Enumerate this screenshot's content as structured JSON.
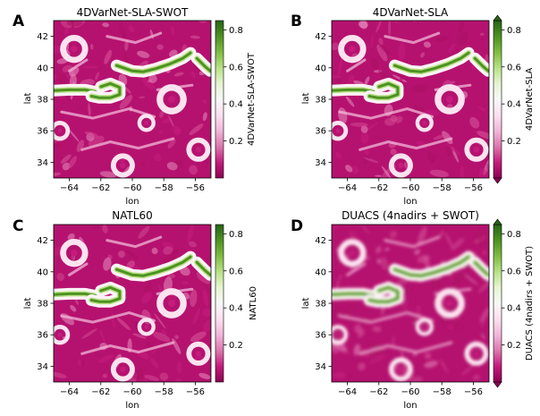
{
  "figure": {
    "panels": [
      {
        "letter": "A",
        "title": "4DVarNet-SLA-SWOT",
        "xlabel": "lon",
        "ylabel": "lat",
        "colorbar_label": "4DVarNet-SLA-SWOT",
        "extend": false,
        "blur": 0
      },
      {
        "letter": "B",
        "title": "4DVarNet-SLA",
        "xlabel": "lon",
        "ylabel": "lat",
        "colorbar_label": "4DVarNet-SLA",
        "extend": true,
        "blur": 0
      },
      {
        "letter": "C",
        "title": "NATL60",
        "xlabel": "lon",
        "ylabel": "lat",
        "colorbar_label": "NATL60",
        "extend": false,
        "blur": 0
      },
      {
        "letter": "D",
        "title": "DUACS (4nadirs + SWOT)",
        "xlabel": "lon",
        "ylabel": "lat",
        "colorbar_label": "DUACS (4nadirs + SWOT)",
        "extend": true,
        "blur": 1.6
      }
    ]
  },
  "chart_data": {
    "type": "heatmap",
    "x_ticks": [
      -64,
      -62,
      -60,
      -58,
      -56
    ],
    "y_ticks": [
      34,
      36,
      38,
      40,
      42
    ],
    "xlim": [
      -65,
      -55
    ],
    "ylim": [
      33,
      43
    ],
    "colorbar_ticks": [
      0.2,
      0.4,
      0.6,
      0.8
    ],
    "colorbar_range": [
      0,
      0.85
    ],
    "colormap": [
      "#8e0152",
      "#c51b7d",
      "#de77ae",
      "#f1b6da",
      "#fde0ef",
      "#f7f7f7",
      "#e6f5d0",
      "#b8e186",
      "#7fbc41",
      "#4d9221",
      "#276419"
    ],
    "features": {
      "jet_main": [
        [
          -61,
          40.15
        ],
        [
          -60,
          39.8
        ],
        [
          -59.3,
          39.75
        ],
        [
          -58.5,
          39.95
        ],
        [
          -57.6,
          40.25
        ],
        [
          -56.8,
          40.6
        ],
        [
          -56.3,
          40.95
        ]
      ],
      "jet_west": [
        [
          -65,
          38.55
        ],
        [
          -64,
          38.6
        ],
        [
          -63,
          38.6
        ],
        [
          -62.2,
          38.45
        ]
      ],
      "meander": [
        [
          -62.6,
          38.2
        ],
        [
          -62.1,
          38.1
        ],
        [
          -61.4,
          38.1
        ],
        [
          -60.8,
          38.3
        ],
        [
          -60.8,
          38.75
        ],
        [
          -61.4,
          39.0
        ],
        [
          -62.0,
          38.8
        ]
      ],
      "jet_east": [
        [
          -55.9,
          40.6
        ],
        [
          -55.4,
          40.1
        ],
        [
          -55.05,
          39.8
        ]
      ],
      "eddies": [
        [
          -63.7,
          41.2,
          0.7
        ],
        [
          -57.5,
          38.0,
          0.75
        ],
        [
          -55.8,
          34.8,
          0.6
        ],
        [
          -64.6,
          36.0,
          0.5
        ],
        [
          -60.6,
          33.8,
          0.6
        ],
        [
          -59.1,
          36.5,
          0.45
        ]
      ],
      "filaments": [
        [
          [
            -64.5,
            37.2
          ],
          [
            -62.5,
            36.8
          ],
          [
            -60.2,
            37.4
          ],
          [
            -58.6,
            36.9
          ]
        ],
        [
          [
            -63.2,
            34.8
          ],
          [
            -61.4,
            35.3
          ],
          [
            -59.6,
            34.9
          ],
          [
            -57.4,
            35.5
          ]
        ],
        [
          [
            -61.6,
            42.0
          ],
          [
            -59.8,
            41.6
          ],
          [
            -58.2,
            42.2
          ]
        ],
        [
          [
            -58.4,
            38.6
          ],
          [
            -56.2,
            38.9
          ]
        ],
        [
          [
            -64.0,
            39.8
          ],
          [
            -62.9,
            40.5
          ]
        ]
      ]
    }
  }
}
